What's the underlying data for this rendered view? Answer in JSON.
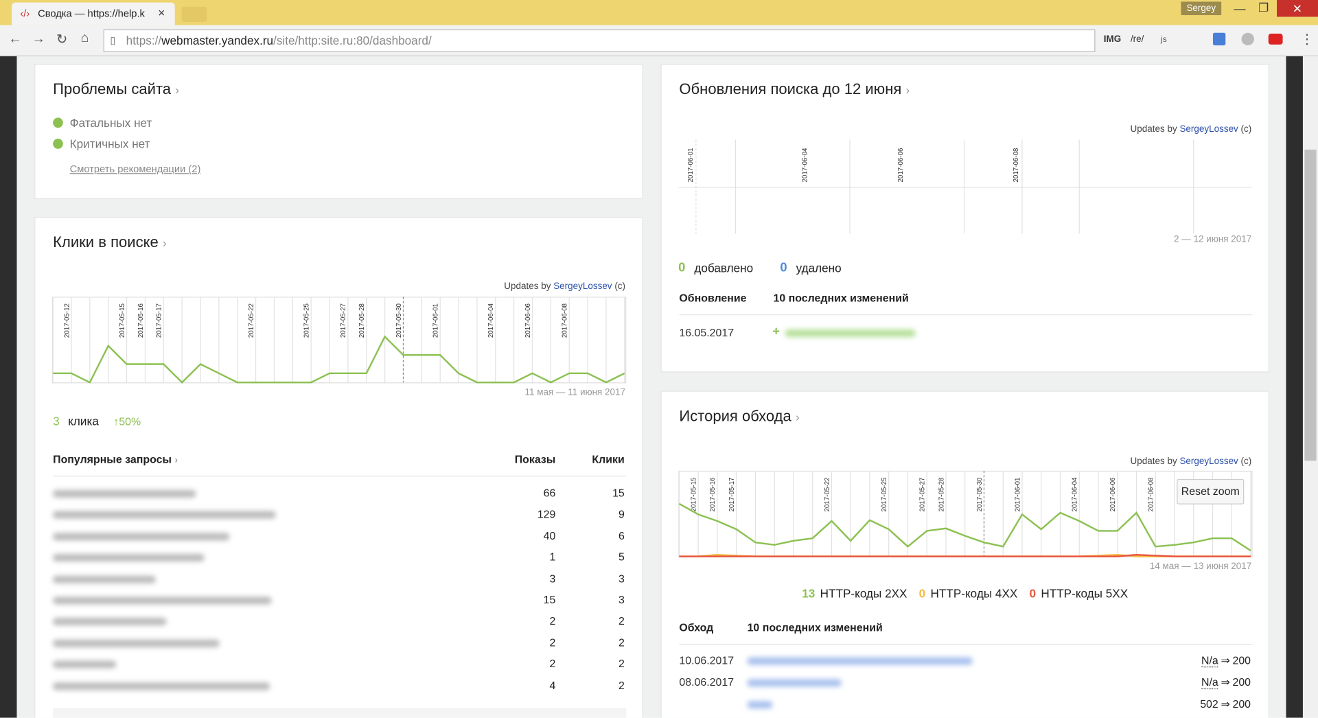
{
  "browser": {
    "tab_title": "Сводка — https://help.k",
    "user": "Sergey",
    "url_scheme": "https://",
    "url_host": "webmaster.yandex.ru",
    "url_path": "/site/http:site.ru:80/dashboard/",
    "extensions": [
      "IMG",
      "/re/",
      "js"
    ]
  },
  "credit": {
    "prefix": "Updates by",
    "name": "SergeyLossev",
    "suffix": "(c)"
  },
  "problems": {
    "title": "Проблемы сайта",
    "items": [
      "Фатальных нет",
      "Критичных нет"
    ],
    "link": "Смотреть рекомендации (2)"
  },
  "clicks": {
    "title": "Клики в поиске",
    "chart": {
      "type": "line",
      "categories": [
        null,
        "2017-05-12",
        null,
        null,
        "2017-05-15",
        "2017-05-16",
        "2017-05-17",
        null,
        null,
        null,
        null,
        "2017-05-22",
        null,
        null,
        "2017-05-25",
        null,
        "2017-05-27",
        "2017-05-28",
        null,
        "2017-05-30",
        null,
        "2017-06-01",
        null,
        null,
        "2017-06-04",
        null,
        "2017-06-06",
        null,
        "2017-06-08",
        null,
        null,
        null
      ],
      "ylim": [
        0,
        9
      ],
      "series": [
        {
          "color": "#8cc152",
          "values": [
            1,
            1,
            0,
            4,
            2,
            2,
            2,
            0,
            2,
            1,
            0,
            0,
            0,
            0,
            0,
            1,
            1,
            1,
            5,
            3,
            3,
            3,
            1,
            0,
            0,
            0,
            1,
            0,
            1,
            1,
            0,
            1
          ]
        }
      ]
    },
    "range": "11 мая — 11 июня 2017",
    "total": 3,
    "total_label": "клика",
    "change": "↑50%",
    "table": {
      "headers": [
        "Популярные запросы",
        "Показы",
        "Клики"
      ],
      "rows": [
        [
          66,
          15
        ],
        [
          129,
          9
        ],
        [
          40,
          6
        ],
        [
          1,
          5
        ],
        [
          3,
          3
        ],
        [
          15,
          3
        ],
        [
          2,
          2
        ],
        [
          2,
          2
        ],
        [
          2,
          2
        ],
        [
          4,
          2
        ]
      ]
    }
  },
  "updates": {
    "title": "Обновления поиска до 12 июня",
    "dates": [
      "2017-06-01",
      "2017-06-04",
      "2017-06-06",
      "2017-06-08"
    ],
    "range": "2 — 12 июня 2017",
    "added": 0,
    "added_label": "добавлено",
    "removed": 0,
    "removed_label": "удалено",
    "headers": [
      "Обновление",
      "10 последних изменений"
    ],
    "row": {
      "date": "16.05.2017",
      "sign": "+"
    }
  },
  "crawl": {
    "title": "История обхода",
    "reset": "Reset zoom",
    "range": "14 мая — 13 июня 2017",
    "chart": {
      "type": "line",
      "categories": [
        null,
        "2017-05-15",
        "2017-05-16",
        "2017-05-17",
        null,
        null,
        null,
        null,
        "2017-05-22",
        null,
        null,
        "2017-05-25",
        null,
        "2017-05-27",
        "2017-05-28",
        null,
        "2017-05-30",
        null,
        "2017-06-01",
        null,
        null,
        "2017-06-04",
        null,
        "2017-06-06",
        null,
        "2017-06-08",
        null,
        null,
        null,
        null,
        null
      ],
      "ylim": [
        0,
        100
      ],
      "series": [
        {
          "name": "HTTP-коды 2XX",
          "color": "#8cc152",
          "total": 13,
          "values": [
            64,
            51,
            43,
            33,
            17,
            14,
            19,
            22,
            43,
            19,
            44,
            33,
            12,
            31,
            34,
            25,
            17,
            12,
            51,
            33,
            53,
            43,
            31,
            31,
            53,
            12,
            14,
            17,
            22,
            22,
            7
          ]
        },
        {
          "name": "HTTP-коды 4XX",
          "color": "#f6bb42",
          "total": 0,
          "values": [
            0,
            0,
            2,
            1,
            0,
            0,
            0,
            0,
            0,
            0,
            0,
            0,
            0,
            0,
            0,
            0,
            0,
            0,
            0,
            0,
            0,
            0,
            1,
            2,
            0,
            0,
            0,
            0,
            0,
            0,
            0
          ]
        },
        {
          "name": "HTTP-коды 5XX",
          "color": "#e9573f",
          "total": 0,
          "values": [
            0,
            0,
            0,
            0,
            0,
            0,
            0,
            0,
            0,
            0,
            0,
            0,
            0,
            0,
            0,
            0,
            0,
            0,
            0,
            0,
            0,
            0,
            0,
            0,
            2,
            1,
            0,
            0,
            0,
            0,
            0
          ]
        }
      ]
    },
    "headers": [
      "Обход",
      "10 последних изменений"
    ],
    "arrow": "⇒",
    "rows": [
      {
        "date": "10.06.2017",
        "from": "N/a",
        "to": "200"
      },
      {
        "date": "08.06.2017",
        "from": "N/a",
        "to": "200"
      },
      {
        "from": "502",
        "to": "200"
      }
    ]
  }
}
